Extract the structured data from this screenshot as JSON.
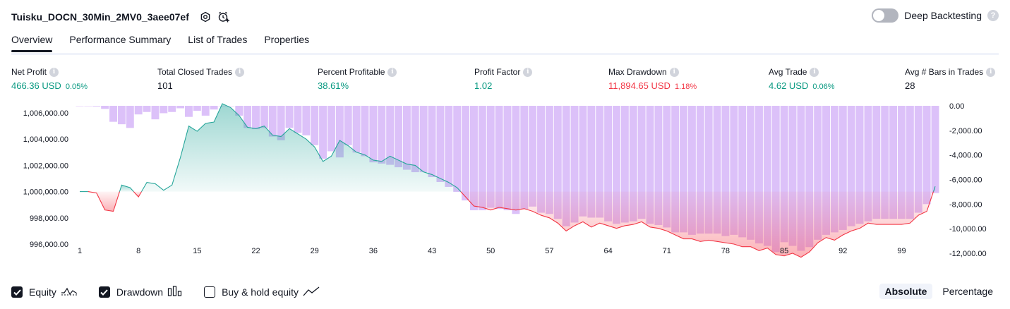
{
  "header": {
    "title": "Tuisku_DOCN_30Min_2MV0_3aee07ef",
    "deep_backtesting_label": "Deep Backtesting",
    "deep_backtesting_on": false,
    "help_glyph": "?"
  },
  "tabs": [
    {
      "label": "Overview",
      "active": true
    },
    {
      "label": "Performance Summary",
      "active": false
    },
    {
      "label": "List of Trades",
      "active": false
    },
    {
      "label": "Properties",
      "active": false
    }
  ],
  "info_glyph": "i",
  "metrics": [
    {
      "label": "Net Profit",
      "value": "466.36 USD",
      "sub": "0.05%",
      "color": "green"
    },
    {
      "label": "Total Closed Trades",
      "value": "101",
      "sub": "",
      "color": "dark"
    },
    {
      "label": "Percent Profitable",
      "value": "38.61%",
      "sub": "",
      "color": "green"
    },
    {
      "label": "Profit Factor",
      "value": "1.02",
      "sub": "",
      "color": "green"
    },
    {
      "label": "Max Drawdown",
      "value": "11,894.65 USD",
      "sub": "1.18%",
      "color": "red"
    },
    {
      "label": "Avg Trade",
      "value": "4.62 USD",
      "sub": "0.06%",
      "color": "green"
    },
    {
      "label": "Avg # Bars in Trades",
      "value": "28",
      "sub": "",
      "color": "dark"
    }
  ],
  "chart_data": {
    "type": "line",
    "x_ticks": [
      "1",
      "8",
      "15",
      "22",
      "29",
      "36",
      "43",
      "50",
      "57",
      "64",
      "71",
      "78",
      "85",
      "92",
      "99"
    ],
    "y_left_ticks": [
      "1,006,000.00",
      "1,004,000.00",
      "1,002,000.00",
      "1,000,000.00",
      "998,000.00",
      "996,000.00"
    ],
    "y_right_ticks": [
      "0.00",
      "-2,000.00",
      "-4,000.00",
      "-6,000.00",
      "-8,000.00",
      "-10,000.00",
      "-12,000.00"
    ],
    "baseline": 1000000,
    "series": [
      {
        "name": "Equity",
        "values": [
          1000000,
          1000000,
          999900,
          998600,
          998500,
          1000500,
          1000300,
          999600,
          1000700,
          1000600,
          1000100,
          1000500,
          1002600,
          1005000,
          1004600,
          1005200,
          1005300,
          1006700,
          1006400,
          1005800,
          1004900,
          1004800,
          1005000,
          1004300,
          1004200,
          1004800,
          1004400,
          1004000,
          1003400,
          1002300,
          1002700,
          1003900,
          1003500,
          1003000,
          1002800,
          1002400,
          1002300,
          1002700,
          1002400,
          1002100,
          1002000,
          1001500,
          1001300,
          1001000,
          1000700,
          1000300,
          999600,
          998900,
          998800,
          998600,
          998800,
          998700,
          998600,
          998700,
          998500,
          998200,
          998000,
          997600,
          997000,
          997400,
          997700,
          997300,
          997600,
          997400,
          997200,
          997400,
          997500,
          997700,
          997300,
          997200,
          997000,
          996700,
          996400,
          996400,
          996200,
          996300,
          996200,
          996100,
          996000,
          995800,
          995800,
          995500,
          995700,
          995200,
          995100,
          995300,
          995000,
          995400,
          996100,
          996500,
          996300,
          996700,
          997000,
          997200,
          997600,
          997500,
          997500,
          997500,
          997500,
          997600,
          998200,
          998500,
          1000400
        ]
      },
      {
        "name": "Drawdown",
        "values": [
          0,
          0,
          -50,
          -250,
          -1300,
          -1500,
          -1800,
          -700,
          -500,
          -1100,
          -600,
          -500,
          -200,
          -900,
          -400,
          -800,
          -300,
          0,
          0,
          -800,
          -1800,
          -1900,
          -1800,
          -2500,
          -2800,
          -1800,
          -2200,
          -2400,
          -3200,
          -4300,
          -3700,
          -4200,
          -3200,
          -3800,
          -4100,
          -4600,
          -4700,
          -4800,
          -5000,
          -5200,
          -5400,
          -5400,
          -5800,
          -6200,
          -6600,
          -7000,
          -7700,
          -8500,
          -8500,
          -8300,
          -8400,
          -8500,
          -8800,
          -8400,
          -8200,
          -8700,
          -8800,
          -9200,
          -9800,
          -9500,
          -9000,
          -9100,
          -9100,
          -9400,
          -9600,
          -9500,
          -9400,
          -9200,
          -9600,
          -9700,
          -9900,
          -10300,
          -10300,
          -10500,
          -10400,
          -10400,
          -10400,
          -10600,
          -10500,
          -10700,
          -10900,
          -11200,
          -11400,
          -11900,
          -11100,
          -11400,
          -11800,
          -11500,
          -10900,
          -10500,
          -10300,
          -10100,
          -9800,
          -9600,
          -9400,
          -9200,
          -9200,
          -9200,
          -9200,
          -9200,
          -8700,
          -8000,
          -7100
        ]
      }
    ],
    "ylim_left": [
      995500,
      1006700
    ],
    "ylim_right": [
      -12000,
      0
    ]
  },
  "footer": {
    "options": [
      {
        "label": "Equity",
        "checked": true,
        "icon": "equity-line-icon"
      },
      {
        "label": "Drawdown",
        "checked": true,
        "icon": "drawdown-bars-icon"
      },
      {
        "label": "Buy & hold equity",
        "checked": false,
        "icon": "buy-hold-line-icon"
      }
    ],
    "modes": [
      {
        "label": "Absolute",
        "active": true
      },
      {
        "label": "Percentage",
        "active": false
      }
    ]
  }
}
